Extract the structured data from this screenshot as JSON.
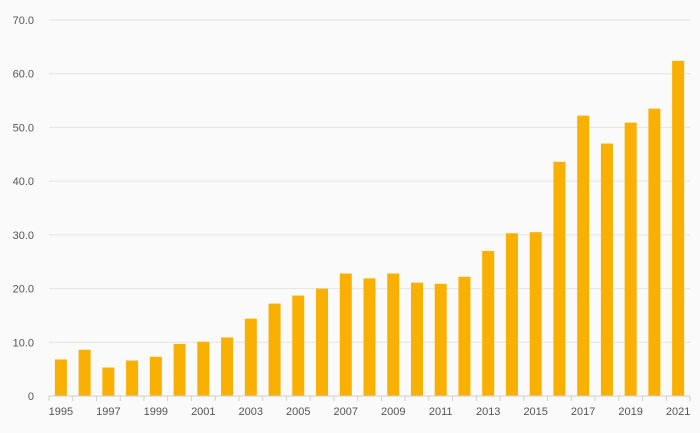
{
  "chart_data": {
    "type": "bar",
    "title": "",
    "xlabel": "",
    "ylabel": "",
    "categories": [
      "1995",
      "1996",
      "1997",
      "1998",
      "1999",
      "2000",
      "2001",
      "2002",
      "2003",
      "2004",
      "2005",
      "2006",
      "2007",
      "2008",
      "2009",
      "2010",
      "2011",
      "2012",
      "2013",
      "2014",
      "2015",
      "2016",
      "2017",
      "2018",
      "2019",
      "2020",
      "2021"
    ],
    "values": [
      6.8,
      8.6,
      5.3,
      6.6,
      7.3,
      9.7,
      10.1,
      10.9,
      14.4,
      17.2,
      18.7,
      20.0,
      22.8,
      21.9,
      22.8,
      21.1,
      20.9,
      22.2,
      27.0,
      30.3,
      30.5,
      43.6,
      52.2,
      47.0,
      50.9,
      53.5,
      62.4
    ],
    "ylim": [
      0,
      70
    ],
    "yticks": [
      "0",
      "10.0",
      "20.0",
      "30.0",
      "40.0",
      "50.0",
      "60.0",
      "70.0"
    ],
    "xtick_labels": [
      "1995",
      "1997",
      "1999",
      "2001",
      "2003",
      "2005",
      "2007",
      "2009",
      "2011",
      "2013",
      "2015",
      "2017",
      "2019",
      "2021"
    ],
    "grid": true,
    "legend": "none",
    "bar_color": "#f9b000"
  }
}
